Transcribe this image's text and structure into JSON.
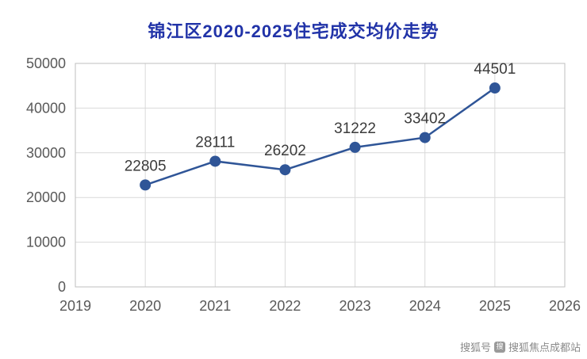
{
  "chart_data": {
    "type": "line",
    "title": "锦江区2020-2025住宅成交均价走势",
    "categories": [
      2020,
      2021,
      2022,
      2023,
      2024,
      2025
    ],
    "values": [
      22805,
      28111,
      26202,
      31222,
      33402,
      44501
    ],
    "x_ticks": [
      2019,
      2020,
      2021,
      2022,
      2023,
      2024,
      2025,
      2026
    ],
    "y_ticks": [
      0,
      10000,
      20000,
      30000,
      40000,
      50000
    ],
    "xlim": [
      2019,
      2026
    ],
    "ylim": [
      0,
      50000
    ],
    "grid": true,
    "legend": "none",
    "line_color": "#2f5597",
    "marker_color": "#2f5597",
    "grid_color": "#d9d9d9",
    "border_color": "#bfbfbf",
    "title_color": "#2133a8",
    "xlabel": "",
    "ylabel": ""
  },
  "watermark": {
    "prefix": "搜狐号",
    "suffix": "搜狐焦点成都站",
    "icon": "sohu-logo"
  }
}
